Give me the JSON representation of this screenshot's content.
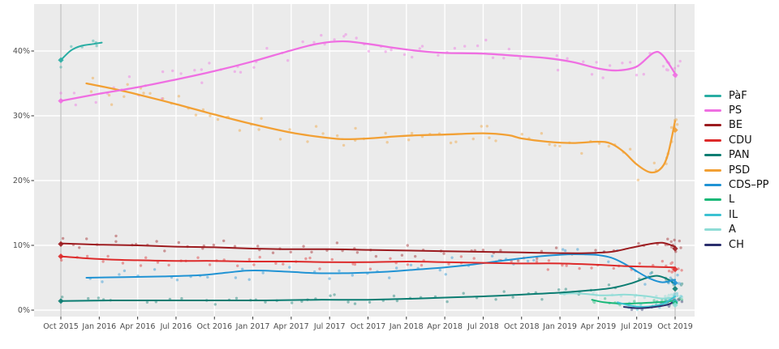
{
  "chart_data": {
    "type": "scatter-with-smoothed-lines",
    "title": "",
    "x_axis": {
      "unit": "months since Oct 2015",
      "tick_months": [
        0,
        3,
        6,
        9,
        12,
        15,
        18,
        21,
        24,
        27,
        30,
        33,
        36,
        39,
        42,
        45,
        48
      ],
      "tick_labels": [
        "Oct 2015",
        "Jan 2016",
        "Apr 2016",
        "Jul 2016",
        "Oct 2016",
        "Jan 2017",
        "Apr 2017",
        "Jul 2017",
        "Oct 2017",
        "Jan 2018",
        "Apr 2018",
        "Jul 2018",
        "Oct 2018",
        "Jan 2019",
        "Apr 2019",
        "Jul 2019",
        "Oct 2019"
      ]
    },
    "y_axis": {
      "tick_values": [
        0,
        10,
        20,
        30,
        40
      ],
      "tick_labels": [
        "0%",
        "10%",
        "20%",
        "30%",
        "40%"
      ],
      "ylim": [
        -1,
        47
      ]
    },
    "panel": {
      "background": "#ebebeb",
      "gridline_color": "#ffffff",
      "refline_color": "#b0b0b0",
      "refline_months": [
        0,
        48
      ],
      "axis_text_color": "#4d4d4d"
    },
    "legend": {
      "position": "right",
      "items": [
        "PàF",
        "PS",
        "BE",
        "CDU",
        "PAN",
        "PSD",
        "CDS–PP",
        "L",
        "IL",
        "A",
        "CH"
      ]
    },
    "draw_order": [
      "A",
      "L",
      "IL",
      "CH",
      "PAN",
      "CDS–PP",
      "CDU",
      "BE",
      "PSD",
      "PS",
      "PàF"
    ],
    "series": [
      {
        "name": "PàF",
        "color": "#29ada3",
        "width": 2,
        "points": [
          [
            0,
            38.6
          ],
          [
            0.8,
            40.1
          ],
          [
            1.6,
            40.8
          ],
          [
            2.6,
            41.1
          ],
          [
            3.2,
            41.3
          ]
        ],
        "scatter": {
          "step": 0.5,
          "sd": 0.9
        }
      },
      {
        "name": "PS",
        "color": "#ef6fe2",
        "width": 2.3,
        "points": [
          [
            0,
            32.3
          ],
          [
            3,
            33.4
          ],
          [
            6,
            34.4
          ],
          [
            9,
            35.6
          ],
          [
            12,
            36.9
          ],
          [
            15,
            38.4
          ],
          [
            18,
            40.1
          ],
          [
            20,
            41.1
          ],
          [
            22,
            41.5
          ],
          [
            24,
            41.1
          ],
          [
            26,
            40.5
          ],
          [
            28,
            40.0
          ],
          [
            30,
            39.7
          ],
          [
            33,
            39.6
          ],
          [
            36,
            39.2
          ],
          [
            38,
            38.9
          ],
          [
            40,
            38.3
          ],
          [
            42,
            37.3
          ],
          [
            43.5,
            37.0
          ],
          [
            45,
            37.6
          ],
          [
            46.3,
            39.7
          ],
          [
            47,
            39.4
          ],
          [
            48,
            36.5
          ]
        ],
        "scatter": {
          "step": 0.62,
          "sd": 1.5
        }
      },
      {
        "name": "BE",
        "color": "#9c1b1f",
        "width": 2,
        "points": [
          [
            0,
            10.3
          ],
          [
            3,
            10.1
          ],
          [
            6,
            10.0
          ],
          [
            9,
            9.8
          ],
          [
            12,
            9.7
          ],
          [
            15,
            9.5
          ],
          [
            18,
            9.4
          ],
          [
            21,
            9.4
          ],
          [
            24,
            9.3
          ],
          [
            27,
            9.2
          ],
          [
            30,
            9.1
          ],
          [
            33,
            9.0
          ],
          [
            36,
            8.9
          ],
          [
            39,
            8.8
          ],
          [
            41,
            8.8
          ],
          [
            43,
            9.0
          ],
          [
            44.5,
            9.6
          ],
          [
            46,
            10.2
          ],
          [
            47,
            10.4
          ],
          [
            48,
            9.8
          ]
        ],
        "scatter": {
          "step": 0.75,
          "sd": 0.9
        }
      },
      {
        "name": "CDU",
        "color": "#dd2a2a",
        "width": 2,
        "points": [
          [
            0,
            8.3
          ],
          [
            2,
            8.0
          ],
          [
            4,
            7.8
          ],
          [
            6,
            7.7
          ],
          [
            9,
            7.6
          ],
          [
            12,
            7.6
          ],
          [
            15,
            7.5
          ],
          [
            18,
            7.5
          ],
          [
            21,
            7.4
          ],
          [
            24,
            7.4
          ],
          [
            27,
            7.5
          ],
          [
            30,
            7.4
          ],
          [
            33,
            7.3
          ],
          [
            36,
            7.2
          ],
          [
            39,
            7.2
          ],
          [
            42,
            7.0
          ],
          [
            44,
            6.8
          ],
          [
            46,
            6.7
          ],
          [
            48,
            6.6
          ]
        ],
        "scatter": {
          "step": 0.75,
          "sd": 0.8
        }
      },
      {
        "name": "PAN",
        "color": "#0b7d72",
        "width": 2,
        "points": [
          [
            0,
            1.4
          ],
          [
            4,
            1.5
          ],
          [
            8,
            1.5
          ],
          [
            12,
            1.5
          ],
          [
            16,
            1.5
          ],
          [
            20,
            1.6
          ],
          [
            24,
            1.6
          ],
          [
            28,
            1.8
          ],
          [
            31,
            2.0
          ],
          [
            34,
            2.2
          ],
          [
            37,
            2.5
          ],
          [
            39,
            2.7
          ],
          [
            41,
            3.0
          ],
          [
            43,
            3.4
          ],
          [
            44.5,
            4.1
          ],
          [
            45.8,
            5.0
          ],
          [
            46.6,
            5.3
          ],
          [
            47.4,
            4.8
          ],
          [
            48,
            4.0
          ]
        ],
        "scatter": {
          "step": 0.8,
          "sd": 0.55
        }
      },
      {
        "name": "PSD",
        "color": "#f2a034",
        "width": 2.3,
        "points": [
          [
            2,
            35.0
          ],
          [
            4,
            34.2
          ],
          [
            6,
            33.3
          ],
          [
            9,
            31.8
          ],
          [
            12,
            30.2
          ],
          [
            15,
            28.7
          ],
          [
            18,
            27.4
          ],
          [
            20,
            26.8
          ],
          [
            22,
            26.4
          ],
          [
            24,
            26.5
          ],
          [
            26,
            26.8
          ],
          [
            28,
            27.0
          ],
          [
            30,
            27.1
          ],
          [
            33,
            27.3
          ],
          [
            35,
            27.0
          ],
          [
            36,
            26.5
          ],
          [
            38,
            26.0
          ],
          [
            40,
            25.8
          ],
          [
            42,
            26.0
          ],
          [
            43,
            25.7
          ],
          [
            44,
            24.4
          ],
          [
            45,
            22.5
          ],
          [
            46,
            21.3
          ],
          [
            46.8,
            21.7
          ],
          [
            47.4,
            23.8
          ],
          [
            48,
            29.2
          ]
        ],
        "scatter": {
          "step": 0.62,
          "sd": 1.5
        }
      },
      {
        "name": "CDS–PP",
        "color": "#2093d4",
        "width": 2,
        "points": [
          [
            2,
            5.0
          ],
          [
            5,
            5.1
          ],
          [
            8,
            5.2
          ],
          [
            11,
            5.4
          ],
          [
            13,
            5.8
          ],
          [
            14.5,
            6.1
          ],
          [
            16,
            6.1
          ],
          [
            18,
            5.9
          ],
          [
            20,
            5.7
          ],
          [
            22,
            5.7
          ],
          [
            24,
            5.8
          ],
          [
            26,
            6.0
          ],
          [
            28,
            6.3
          ],
          [
            30,
            6.6
          ],
          [
            32,
            7.0
          ],
          [
            34,
            7.5
          ],
          [
            36,
            8.0
          ],
          [
            38,
            8.4
          ],
          [
            39.5,
            8.6
          ],
          [
            41,
            8.6
          ],
          [
            42,
            8.5
          ],
          [
            43,
            8.1
          ],
          [
            44,
            7.2
          ],
          [
            45,
            6.0
          ],
          [
            46,
            4.9
          ],
          [
            47,
            4.3
          ],
          [
            48,
            4.7
          ]
        ],
        "scatter": {
          "step": 0.8,
          "sd": 0.9
        }
      },
      {
        "name": "L",
        "color": "#17b877",
        "width": 2,
        "points": [
          [
            41.5,
            1.6
          ],
          [
            42.5,
            1.2
          ],
          [
            44,
            1.0
          ],
          [
            45.5,
            1.1
          ],
          [
            46.5,
            1.2
          ],
          [
            47.3,
            1.3
          ],
          [
            48,
            1.5
          ]
        ],
        "scatter": {
          "step": 0.4,
          "sd": 0.4
        }
      },
      {
        "name": "IL",
        "color": "#3cc2d2",
        "width": 2,
        "points": [
          [
            43.5,
            1.2
          ],
          [
            44.5,
            0.7
          ],
          [
            45.5,
            0.5
          ],
          [
            46.5,
            0.7
          ],
          [
            47.2,
            1.1
          ],
          [
            48,
            2.1
          ]
        ],
        "scatter": {
          "step": 0.35,
          "sd": 0.45
        }
      },
      {
        "name": "A",
        "color": "#8fdcd6",
        "width": 2,
        "points": [
          [
            39,
            2.5
          ],
          [
            40,
            2.6
          ],
          [
            41,
            2.5
          ],
          [
            42,
            2.3
          ],
          [
            43,
            2.3
          ],
          [
            44,
            2.4
          ],
          [
            45,
            2.3
          ],
          [
            46,
            2.1
          ],
          [
            47,
            1.8
          ],
          [
            48,
            2.0
          ]
        ],
        "scatter": {
          "step": 0.5,
          "sd": 0.5
        }
      },
      {
        "name": "CH",
        "color": "#2b2f6d",
        "width": 2,
        "points": [
          [
            44,
            0.5
          ],
          [
            45,
            0.3
          ],
          [
            46,
            0.4
          ],
          [
            46.8,
            0.6
          ],
          [
            47.5,
            0.9
          ],
          [
            48,
            1.4
          ]
        ],
        "scatter": {
          "step": 0.4,
          "sd": 0.4
        }
      }
    ],
    "election_markers": [
      {
        "month": 0,
        "party": "PàF",
        "value": 38.6
      },
      {
        "month": 0,
        "party": "PS",
        "value": 32.3
      },
      {
        "month": 0,
        "party": "BE",
        "value": 10.2
      },
      {
        "month": 0,
        "party": "CDU",
        "value": 8.3
      },
      {
        "month": 0,
        "party": "PAN",
        "value": 1.4
      },
      {
        "month": 48,
        "party": "PS",
        "value": 36.3
      },
      {
        "month": 48,
        "party": "PSD",
        "value": 27.8
      },
      {
        "month": 48,
        "party": "BE",
        "value": 9.5
      },
      {
        "month": 48,
        "party": "CDU",
        "value": 6.3
      },
      {
        "month": 48,
        "party": "CDS–PP",
        "value": 4.2
      },
      {
        "month": 48,
        "party": "PAN",
        "value": 3.3
      },
      {
        "month": 48,
        "party": "CH",
        "value": 1.3
      },
      {
        "month": 48,
        "party": "IL",
        "value": 1.3
      },
      {
        "month": 48,
        "party": "L",
        "value": 1.1
      },
      {
        "month": 48,
        "party": "A",
        "value": 0.8
      }
    ]
  }
}
